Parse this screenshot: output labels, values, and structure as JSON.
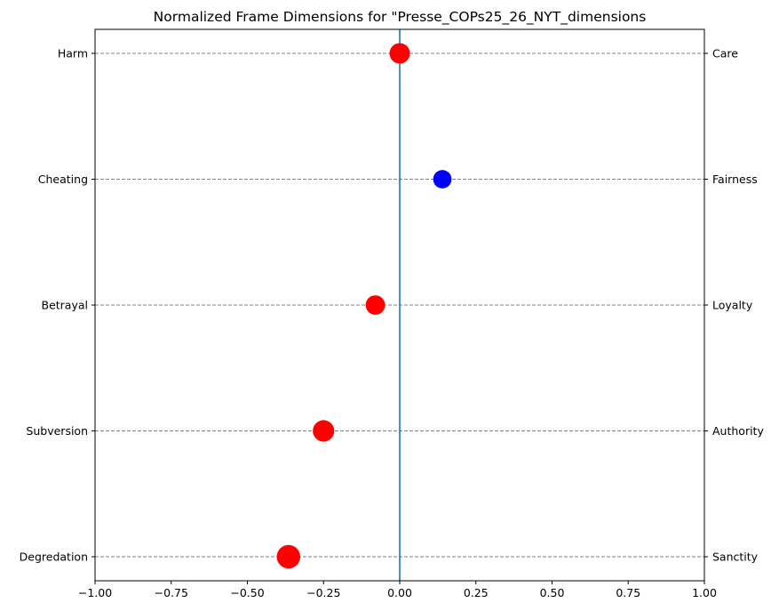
{
  "chart_data": {
    "type": "scatter",
    "title": "Normalized Frame Dimensions for \"Presse_COPs25_26_NYT_dimensions",
    "xlabel": "",
    "ylabel": "",
    "xlim": [
      -1.0,
      1.0
    ],
    "x_ticks": [
      -1.0,
      -0.75,
      -0.5,
      -0.25,
      0.0,
      0.25,
      0.5,
      0.75,
      1.0
    ],
    "x_tick_labels": [
      "−1.00",
      "−0.75",
      "−0.50",
      "−0.25",
      "0.00",
      "0.25",
      "0.50",
      "0.75",
      "1.00"
    ],
    "left_labels": [
      "Harm",
      "Cheating",
      "Betrayal",
      "Subversion",
      "Degredation"
    ],
    "right_labels": [
      "Care",
      "Fairness",
      "Loyalty",
      "Authority",
      "Sanctity"
    ],
    "points": [
      {
        "dimension": "Care",
        "x": 0.0,
        "color": "#ff0000",
        "size": 1.0
      },
      {
        "dimension": "Fairness",
        "x": 0.14,
        "color": "#0000ff",
        "size": 0.9
      },
      {
        "dimension": "Loyalty",
        "x": -0.08,
        "color": "#ff0000",
        "size": 0.95
      },
      {
        "dimension": "Authority",
        "x": -0.25,
        "color": "#ff0000",
        "size": 1.05
      },
      {
        "dimension": "Sanctity",
        "x": -0.365,
        "color": "#ff0000",
        "size": 1.15
      }
    ],
    "zero_line": {
      "x": 0.0,
      "color": "#1f77b4"
    },
    "grid": {
      "horizontal": "dashed",
      "vertical": false
    }
  }
}
